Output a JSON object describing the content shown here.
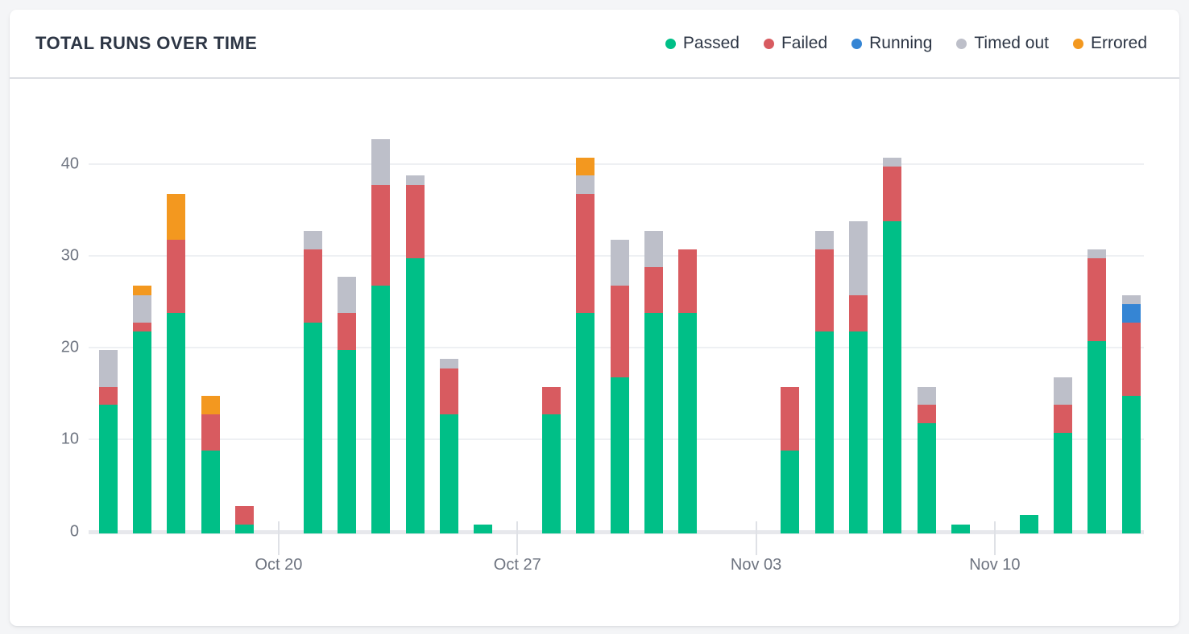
{
  "page": {
    "background": "#f4f5f7"
  },
  "card": {
    "title": "TOTAL RUNS OVER TIME"
  },
  "legend": {
    "items": [
      {
        "name": "passed",
        "label": "Passed",
        "color": "#00bf87"
      },
      {
        "name": "failed",
        "label": "Failed",
        "color": "#d85b60"
      },
      {
        "name": "running",
        "label": "Running",
        "color": "#3585d4"
      },
      {
        "name": "timed_out",
        "label": "Timed out",
        "color": "#bdbfc9"
      },
      {
        "name": "errored",
        "label": "Errored",
        "color": "#f3981f"
      }
    ]
  },
  "chart_data": {
    "type": "bar",
    "stacked": true,
    "title": "TOTAL RUNS OVER TIME",
    "grid": true,
    "legend_position": "top-right",
    "y_ticks": [
      0,
      10,
      20,
      30,
      40
    ],
    "ylim": [
      0,
      45
    ],
    "slot_count": 31,
    "x_tick_labels": [
      {
        "slot": 5,
        "label": "Oct 20"
      },
      {
        "slot": 12,
        "label": "Oct 27"
      },
      {
        "slot": 19,
        "label": "Nov 03"
      },
      {
        "slot": 26,
        "label": "Nov 10"
      }
    ],
    "series_keys": [
      "passed",
      "failed",
      "running",
      "timed_out",
      "errored"
    ],
    "series_colors": {
      "passed": "#00bf87",
      "failed": "#d85b60",
      "running": "#3585d4",
      "timed_out": "#bdbfc9",
      "errored": "#f3981f"
    },
    "bars": [
      {
        "slot": 0,
        "passed": 14,
        "failed": 2,
        "timed_out": 4
      },
      {
        "slot": 1,
        "passed": 22,
        "failed": 1,
        "timed_out": 3,
        "errored": 1
      },
      {
        "slot": 2,
        "passed": 24,
        "failed": 8,
        "errored": 5
      },
      {
        "slot": 3,
        "passed": 9,
        "failed": 4,
        "errored": 2
      },
      {
        "slot": 4,
        "passed": 1,
        "failed": 2
      },
      {
        "slot": 6,
        "passed": 23,
        "failed": 8,
        "timed_out": 2
      },
      {
        "slot": 7,
        "passed": 20,
        "failed": 4,
        "timed_out": 4
      },
      {
        "slot": 8,
        "passed": 27,
        "failed": 11,
        "timed_out": 5
      },
      {
        "slot": 9,
        "passed": 30,
        "failed": 8,
        "timed_out": 1
      },
      {
        "slot": 10,
        "passed": 13,
        "failed": 5,
        "timed_out": 1
      },
      {
        "slot": 11,
        "passed": 1
      },
      {
        "slot": 13,
        "passed": 13,
        "failed": 3
      },
      {
        "slot": 14,
        "passed": 24,
        "failed": 13,
        "timed_out": 2,
        "errored": 2
      },
      {
        "slot": 15,
        "passed": 17,
        "failed": 10,
        "timed_out": 5
      },
      {
        "slot": 16,
        "passed": 24,
        "failed": 5,
        "timed_out": 4
      },
      {
        "slot": 17,
        "passed": 24,
        "failed": 7
      },
      {
        "slot": 20,
        "passed": 9,
        "failed": 7
      },
      {
        "slot": 21,
        "passed": 22,
        "failed": 9,
        "timed_out": 2
      },
      {
        "slot": 22,
        "passed": 22,
        "failed": 4,
        "timed_out": 8
      },
      {
        "slot": 23,
        "passed": 34,
        "failed": 6,
        "timed_out": 1
      },
      {
        "slot": 24,
        "passed": 12,
        "failed": 2,
        "timed_out": 2
      },
      {
        "slot": 25,
        "passed": 1
      },
      {
        "slot": 27,
        "passed": 2
      },
      {
        "slot": 28,
        "passed": 11,
        "failed": 3,
        "timed_out": 3
      },
      {
        "slot": 29,
        "passed": 21,
        "failed": 9,
        "timed_out": 1
      },
      {
        "slot": 30,
        "passed": 15,
        "failed": 8,
        "running": 2,
        "timed_out": 1
      }
    ]
  }
}
